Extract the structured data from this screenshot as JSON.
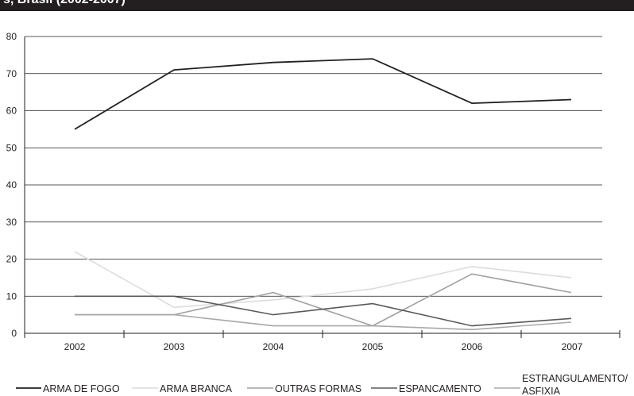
{
  "header": {
    "clipped_title": "s, Brasil (2002-2007)"
  },
  "chart_data": {
    "type": "line",
    "title": "",
    "xlabel": "",
    "ylabel": "",
    "categories": [
      "2002",
      "2003",
      "2004",
      "2005",
      "2006",
      "2007"
    ],
    "ylim": [
      0,
      80
    ],
    "yticks": [
      "0",
      "10",
      "20",
      "30",
      "40",
      "50",
      "60",
      "70",
      "80"
    ],
    "grid": true,
    "legend_position": "bottom",
    "series": [
      {
        "name": "ARMA DE FOGO",
        "color": "#231f20",
        "values": [
          55,
          71,
          73,
          74,
          62,
          63
        ]
      },
      {
        "name": "ARMA  BRANCA",
        "color": "#dcdcdc",
        "values": [
          22,
          7,
          9,
          12,
          18,
          15
        ]
      },
      {
        "name": "OUTRAS FORMAS",
        "color": "#a0a0a0",
        "values": [
          5,
          5,
          11,
          2,
          16,
          11
        ]
      },
      {
        "name": "ESPANCAMENTO",
        "color": "#595959",
        "values": [
          10,
          10,
          5,
          8,
          2,
          4
        ]
      },
      {
        "name": "ESTRANGULAMENTO/",
        "name_line2": "ASFIXIA",
        "color": "#a8a8a8",
        "values": [
          5,
          5,
          2,
          2,
          1,
          3
        ]
      }
    ]
  }
}
